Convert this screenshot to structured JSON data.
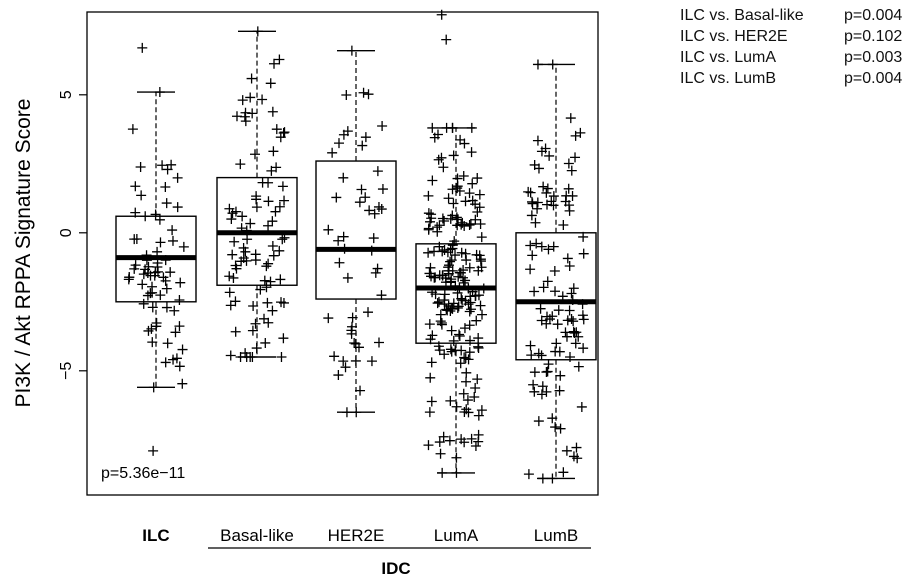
{
  "chart_data": {
    "type": "box",
    "title": "",
    "xlabel": "",
    "ylabel": "PI3K / Akt RPPA Signature Score",
    "ylim": [
      -9.5,
      8
    ],
    "yticks": [
      -5,
      0,
      5
    ],
    "ytick_labels": [
      "−5",
      "0",
      "5"
    ],
    "categories": [
      "ILC",
      "Basal-like",
      "HER2E",
      "LumA",
      "LumB"
    ],
    "group_label": "IDC",
    "annotation": "p=5.36e−11",
    "grid": false,
    "boxes": [
      {
        "name": "ILC",
        "whisker_low": -5.6,
        "q1": -2.5,
        "median": -0.9,
        "q3": 0.6,
        "whisker_high": 5.1,
        "outliers": [
          6.7,
          -7.9
        ]
      },
      {
        "name": "Basal-like",
        "whisker_low": -4.5,
        "q1": -1.9,
        "median": 0.0,
        "q3": 2.0,
        "whisker_high": 7.3,
        "outliers": []
      },
      {
        "name": "HER2E",
        "whisker_low": -6.5,
        "q1": -2.4,
        "median": -0.6,
        "q3": 2.6,
        "whisker_high": 6.6,
        "outliers": []
      },
      {
        "name": "LumA",
        "whisker_low": -8.7,
        "q1": -4.0,
        "median": -2.0,
        "q3": -0.4,
        "whisker_high": 3.8,
        "outliers": [
          7.0,
          7.9
        ]
      },
      {
        "name": "LumB",
        "whisker_low": -8.9,
        "q1": -4.6,
        "median": -2.5,
        "q3": 0.0,
        "whisker_high": 6.1,
        "outliers": []
      }
    ],
    "points_per_group": [
      70,
      90,
      50,
      200,
      110
    ],
    "comparisons": [
      {
        "label": "ILC vs. Basal-like",
        "p": "p=0.004"
      },
      {
        "label": "ILC vs. HER2E",
        "p": "p=0.102"
      },
      {
        "label": "ILC vs. LumA",
        "p": "p=0.003"
      },
      {
        "label": "ILC vs. LumB",
        "p": "p=0.004"
      }
    ]
  }
}
